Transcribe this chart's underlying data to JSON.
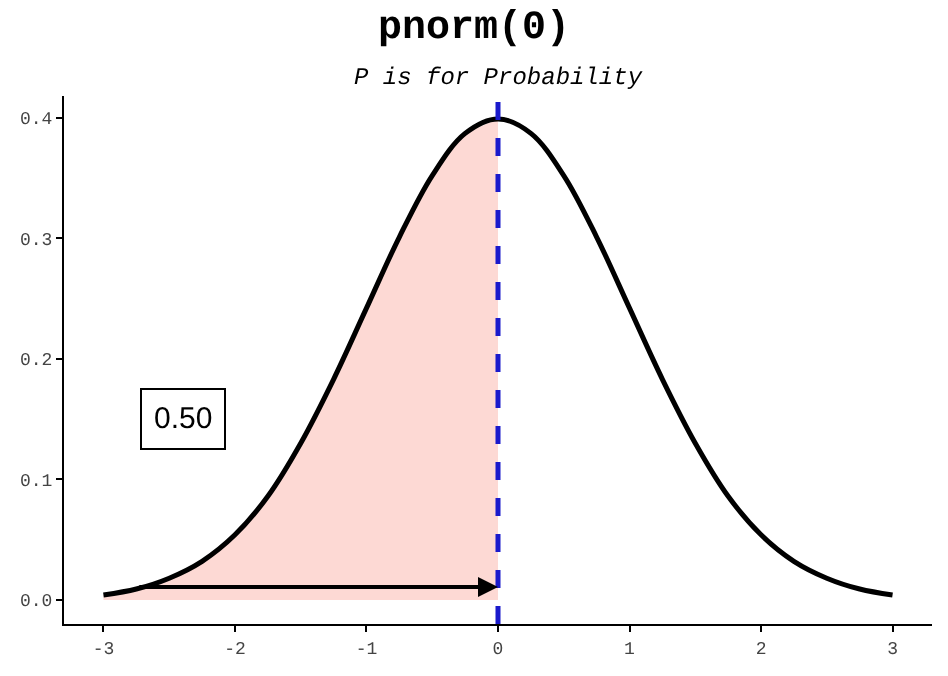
{
  "chart_data": {
    "type": "line",
    "title": "pnorm(0)",
    "subtitle": "P is for Probability",
    "series": [
      {
        "type": "area",
        "color": "#fdd9d4",
        "x": [
          -3,
          -2.75,
          -2.5,
          -2.25,
          -2,
          -1.75,
          -1.5,
          -1.25,
          -1,
          -0.75,
          -0.5,
          -0.25,
          0
        ],
        "values": [
          0.004,
          0.009,
          0.018,
          0.032,
          0.054,
          0.086,
          0.13,
          0.183,
          0.242,
          0.301,
          0.352,
          0.387,
          0.399
        ]
      },
      {
        "color": "#000000",
        "x": [
          -3,
          -2.75,
          -2.5,
          -2.25,
          -2,
          -1.75,
          -1.5,
          -1.25,
          -1,
          -0.75,
          -0.5,
          -0.25,
          0,
          0.25,
          0.5,
          0.75,
          1,
          1.25,
          1.5,
          1.75,
          2,
          2.25,
          2.5,
          2.75,
          3
        ],
        "values": [
          0.004,
          0.009,
          0.018,
          0.032,
          0.054,
          0.086,
          0.13,
          0.183,
          0.242,
          0.301,
          0.352,
          0.387,
          0.399,
          0.387,
          0.352,
          0.301,
          0.242,
          0.183,
          0.13,
          0.086,
          0.054,
          0.032,
          0.018,
          0.009,
          0.004
        ]
      }
    ],
    "ref_lines": [
      {
        "axis": "x",
        "value": 0,
        "color": "#1a1acc",
        "line_style": "dashed"
      }
    ],
    "annotations": [
      {
        "text": "0.50",
        "x": -2.4,
        "y": 0.15
      }
    ],
    "xlim": [
      -3.3,
      3.3
    ],
    "xticks": [
      -3,
      -2,
      -1,
      0,
      1,
      2,
      3
    ],
    "ylim": [
      -0.02,
      0.418
    ],
    "yticks": [
      {
        "value": 0,
        "label": "0.0"
      },
      0.1,
      0.2,
      0.3,
      0.4
    ]
  }
}
